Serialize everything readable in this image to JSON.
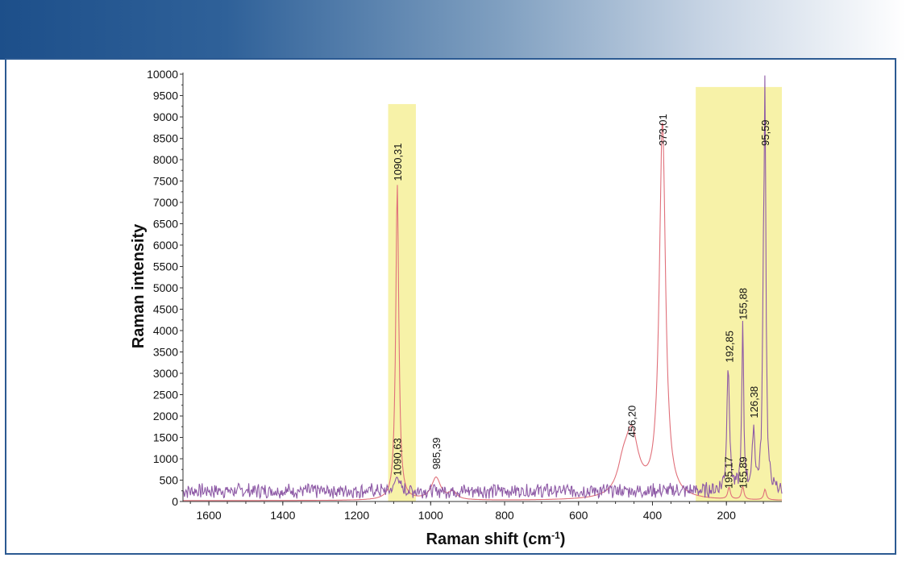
{
  "chart_data": {
    "type": "line",
    "title": "",
    "xlabel": "Raman shift (cm",
    "xlabel_sup": "-1",
    "xlabel_end": ")",
    "ylabel": "Raman intensity",
    "xlim": [
      1670,
      50
    ],
    "ylim": [
      0,
      10000
    ],
    "x_ticks": [
      1600,
      1400,
      1200,
      1000,
      800,
      600,
      400,
      200
    ],
    "y_ticks": [
      0,
      500,
      1000,
      1500,
      2000,
      2500,
      3000,
      3500,
      4000,
      4500,
      5000,
      5500,
      6000,
      6500,
      7000,
      7500,
      8000,
      8500,
      9000,
      9500,
      10000
    ],
    "highlight_ranges": [
      {
        "x": [
          1115,
          1040
        ],
        "y_top": 9300
      },
      {
        "x": [
          283,
          50
        ],
        "y_top": 9700
      }
    ],
    "series": [
      {
        "name": "spectrum-red",
        "color": "#e0707a",
        "baseline": 20,
        "peaks": [
          {
            "x": 1090.31,
            "height": 7400,
            "width": 5
          },
          {
            "x": 985.39,
            "height": 520,
            "width": 15
          },
          {
            "x": 940,
            "height": 180,
            "width": 12
          },
          {
            "x": 456.2,
            "height": 1450,
            "width": 22
          },
          {
            "x": 480,
            "height": 500,
            "width": 18
          },
          {
            "x": 373.01,
            "height": 8800,
            "width": 10
          },
          {
            "x": 192.85,
            "height": 280,
            "width": 4
          },
          {
            "x": 155.88,
            "height": 300,
            "width": 4
          },
          {
            "x": 95.59,
            "height": 250,
            "width": 4
          }
        ]
      },
      {
        "name": "spectrum-purple",
        "color": "#8e5aa6",
        "baseline": 250,
        "noise": 180,
        "peaks": [
          {
            "x": 1090.63,
            "height": 420,
            "width": 5
          },
          {
            "x": 195.17,
            "height": 3050,
            "width": 4
          },
          {
            "x": 155.89,
            "height": 3800,
            "width": 3
          },
          {
            "x": 126.38,
            "height": 1400,
            "width": 4
          },
          {
            "x": 95.59,
            "height": 8700,
            "width": 3
          },
          {
            "x": 100,
            "height": 3200,
            "width": 3
          }
        ]
      }
    ],
    "annotations": [
      {
        "text": "1090,31",
        "x": 1090.31,
        "y": 7500
      },
      {
        "text": "1090,63",
        "x": 1090.63,
        "y": 600
      },
      {
        "text": "985,39",
        "x": 985.39,
        "y": 750
      },
      {
        "text": "456,20",
        "x": 456.2,
        "y": 1500
      },
      {
        "text": "373,01",
        "x": 373.01,
        "y": 8320
      },
      {
        "text": "192,85",
        "x": 192.85,
        "y": 3250
      },
      {
        "text": "195,17",
        "x": 195.17,
        "y": 300
      },
      {
        "text": "155,88",
        "x": 155.88,
        "y": 4250
      },
      {
        "text": "155,89",
        "x": 155.89,
        "y": 300
      },
      {
        "text": "126,38",
        "x": 126.38,
        "y": 1950
      },
      {
        "text": "95,59",
        "x": 95.59,
        "y": 8320
      }
    ]
  }
}
